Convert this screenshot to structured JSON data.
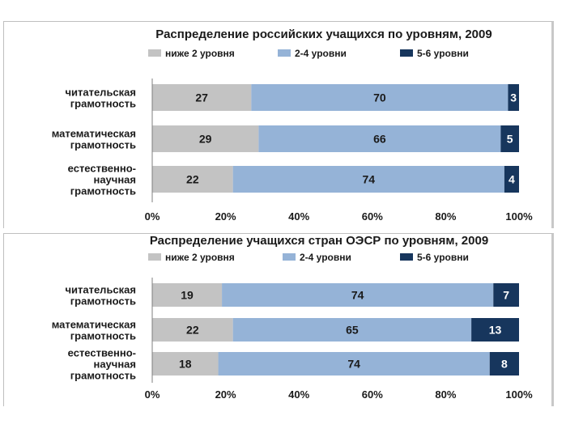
{
  "colors": {
    "below2": "#c3c3c3",
    "mid": "#95b3d7",
    "top": "#17365d",
    "axis": "#7f7f7f",
    "panel_border": "#bfbfbf"
  },
  "chart_data": [
    {
      "type": "bar",
      "orientation": "horizontal-stacked-percent",
      "title": "Распределение российских учащихся по уровням, 2009",
      "categories": [
        [
          "читательская",
          "грамотность"
        ],
        [
          "математическая",
          "грамотность"
        ],
        [
          "естественно-",
          "научная",
          "грамотность"
        ]
      ],
      "series": [
        {
          "name": "ниже 2 уровня",
          "values": [
            27,
            29,
            22
          ]
        },
        {
          "name": "2-4 уровни",
          "values": [
            70,
            66,
            74
          ]
        },
        {
          "name": "5-6 уровни",
          "values": [
            3,
            5,
            4
          ]
        }
      ],
      "xticks": [
        "0%",
        "20%",
        "40%",
        "60%",
        "80%",
        "100%"
      ],
      "xlim": [
        0,
        100
      ],
      "legend_position": "top"
    },
    {
      "type": "bar",
      "orientation": "horizontal-stacked-percent",
      "title": "Распределение учащихся  стран ОЭСР по уровням, 2009",
      "categories": [
        [
          "читательская",
          "грамотность"
        ],
        [
          "математическая",
          "грамотность"
        ],
        [
          "естественно-",
          "научная",
          "грамотность"
        ]
      ],
      "series": [
        {
          "name": "ниже 2 уровня",
          "values": [
            19,
            22,
            18
          ]
        },
        {
          "name": "2-4 уровни",
          "values": [
            74,
            65,
            74
          ]
        },
        {
          "name": "5-6 уровни",
          "values": [
            7,
            13,
            8
          ]
        }
      ],
      "xticks": [
        "0%",
        "20%",
        "40%",
        "60%",
        "80%",
        "100%"
      ],
      "xlim": [
        0,
        100
      ],
      "legend_position": "top"
    }
  ]
}
